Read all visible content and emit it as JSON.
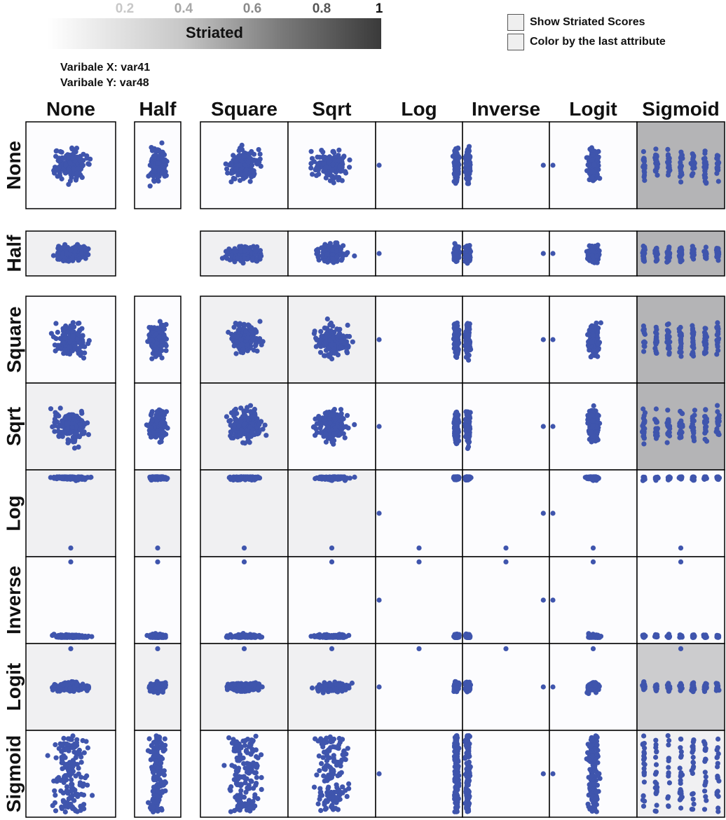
{
  "colorbar": {
    "ticks": [
      "0.2",
      "0.4",
      "0.6",
      "0.8",
      "1"
    ],
    "tick_colors": [
      "#c8c8c8",
      "#a9a9a9",
      "#8a8a8a",
      "#555555",
      "#111111"
    ],
    "label": "Striated"
  },
  "variable_x": "Varibale X: var41",
  "variable_y": "Varibale Y: var48",
  "options": {
    "show_striated": "Show Striated Scores",
    "color_last": "Color by the last attribute"
  },
  "point_color": "#3f55ad",
  "chart_data": {
    "type": "scatter",
    "columns": [
      "None",
      "Half",
      "Square",
      "Sqrt",
      "Log",
      "Inverse",
      "Logit",
      "Sigmoid"
    ],
    "rows": [
      "None",
      "Half",
      "Square",
      "Sqrt",
      "Log",
      "Inverse",
      "Logit",
      "Sigmoid"
    ],
    "empty_cells": [
      [
        1,
        1
      ]
    ],
    "striated_scores": [
      [
        0.0,
        0.0,
        0.0,
        0.0,
        0.0,
        0.0,
        0.0,
        0.6
      ],
      [
        0.1,
        0.0,
        0.1,
        0.0,
        0.0,
        0.0,
        0.0,
        0.6
      ],
      [
        0.0,
        0.0,
        0.1,
        0.1,
        0.0,
        0.0,
        0.0,
        0.6
      ],
      [
        0.1,
        0.0,
        0.1,
        0.0,
        0.0,
        0.0,
        0.0,
        0.6
      ],
      [
        0.1,
        0.1,
        0.1,
        0.1,
        0.0,
        0.0,
        0.0,
        0.0
      ],
      [
        0.0,
        0.0,
        0.0,
        0.0,
        0.0,
        0.0,
        0.0,
        0.0
      ],
      [
        0.1,
        0.1,
        0.1,
        0.1,
        0.0,
        0.0,
        0.0,
        0.4
      ],
      [
        0.0,
        0.0,
        0.0,
        0.0,
        0.0,
        0.0,
        0.0,
        0.1
      ]
    ]
  }
}
